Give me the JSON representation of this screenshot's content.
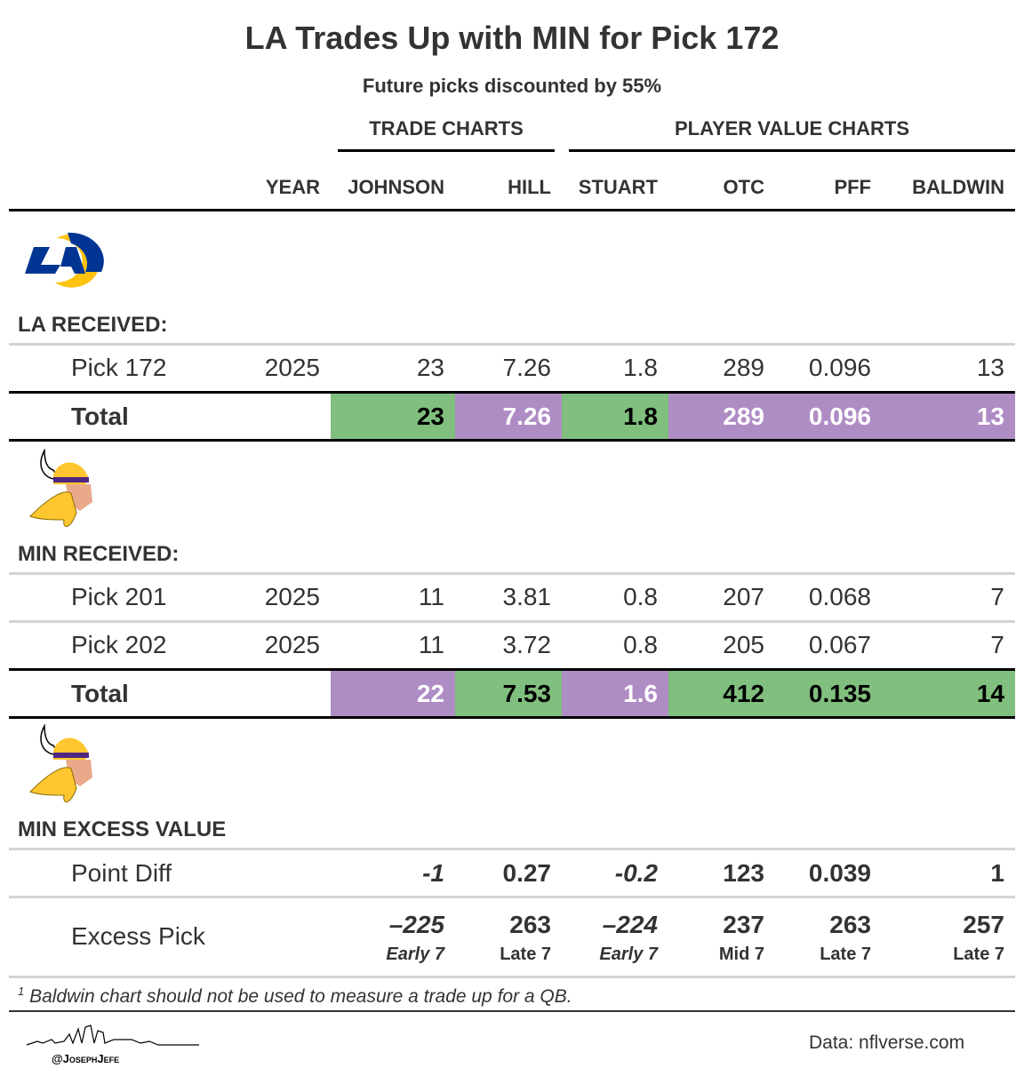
{
  "title": "LA Trades Up with MIN for Pick 172",
  "subtitle": "Future picks discounted by 55%",
  "spanners": {
    "trade": "TRADE CHARTS",
    "player": "PLAYER VALUE CHARTS"
  },
  "columns": [
    "YEAR",
    "JOHNSON",
    "HILL",
    "STUART",
    "OTC",
    "PFF",
    "BALDWIN"
  ],
  "footnote_mark": "1",
  "colors": {
    "better_fill": "#80BF7E",
    "worse_fill": "#AE8CC4",
    "positive_text": "#1E7A3A",
    "negative_text": "#6E2A8C"
  },
  "logos": {
    "la": "LA Rams logo",
    "min": "Minnesota Vikings logo"
  },
  "chart_data": {
    "type": "table",
    "la": {
      "label": "LA RECEIVED:",
      "rows": [
        {
          "name": "Pick 172",
          "year": "2025",
          "values": [
            "23",
            "7.26",
            "1.8",
            "289",
            "0.096",
            "13"
          ]
        }
      ],
      "total": {
        "label": "Total",
        "values": [
          "23",
          "7.26",
          "1.8",
          "289",
          "0.096",
          "13"
        ],
        "better": [
          true,
          false,
          true,
          false,
          false,
          false
        ]
      }
    },
    "min": {
      "label": "MIN RECEIVED:",
      "rows": [
        {
          "name": "Pick 201",
          "year": "2025",
          "values": [
            "11",
            "3.81",
            "0.8",
            "207",
            "0.068",
            "7"
          ]
        },
        {
          "name": "Pick 202",
          "year": "2025",
          "values": [
            "11",
            "3.72",
            "0.8",
            "205",
            "0.067",
            "7"
          ]
        }
      ],
      "total": {
        "label": "Total",
        "values": [
          "22",
          "7.53",
          "1.6",
          "412",
          "0.135",
          "14"
        ],
        "better": [
          false,
          true,
          false,
          true,
          true,
          true
        ]
      }
    },
    "excess": {
      "label": "MIN EXCESS VALUE",
      "point_diff": {
        "label": "Point Diff",
        "values": [
          "-1",
          "0.27",
          "-0.2",
          "123",
          "0.039",
          "1"
        ]
      },
      "excess_pick": {
        "label": "Excess Pick",
        "values": [
          "–225",
          "263",
          "–224",
          "237",
          "263",
          "257"
        ],
        "rounds": [
          "Early 7",
          "Late 7",
          "Early 7",
          "Mid 7",
          "Late 7",
          "Late 7"
        ]
      },
      "negative": [
        true,
        false,
        true,
        false,
        false,
        false
      ]
    }
  },
  "footnote": "Baldwin chart should not be used to measure a trade up for a QB.",
  "credit": "Data: nflverse.com",
  "handle": "@JosephJefe"
}
